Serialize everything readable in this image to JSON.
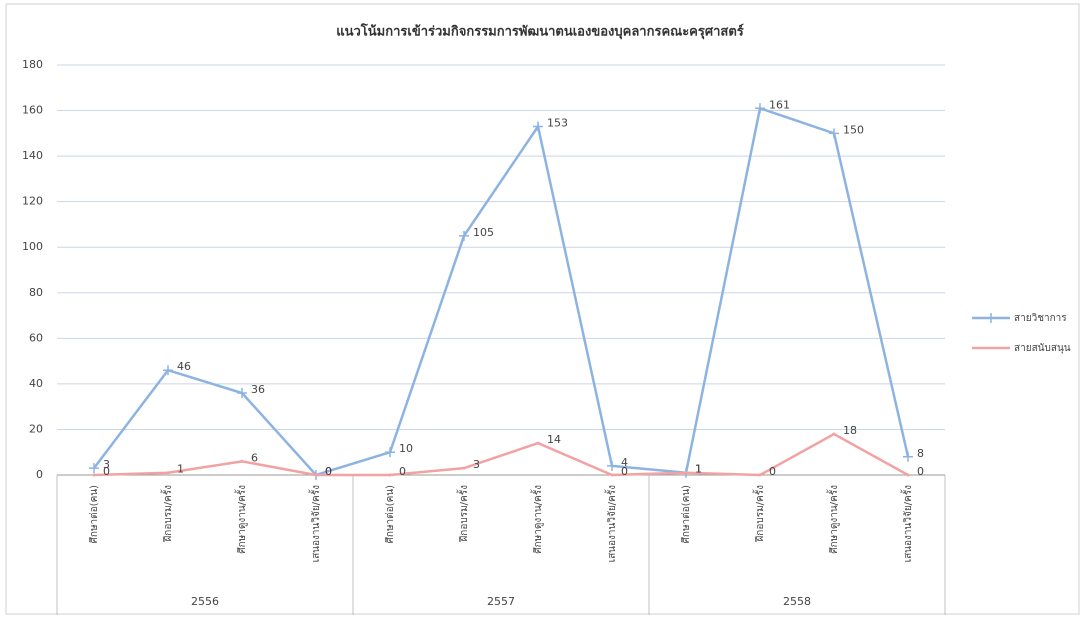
{
  "chart_data": {
    "type": "line",
    "title": "แนวโน้มการเข้าร่วมกิจกรรมการพัฒนาตนเองของบุคลากรคณะครุศาสตร์",
    "categories": [
      "ศึกษาต่อ(คน)",
      "ฝึกอบรม/ครั้ง",
      "ศึกษาดูงาน/ครั้ง",
      "เสนองานวิจัย/ครั้ง",
      "ศึกษาต่อ(คน)",
      "ฝึกอบรม/ครั้ง",
      "ศึกษาดูงาน/ครั้ง",
      "เสนองานวิจัย/ครั้ง",
      "ศึกษาต่อ(คน)",
      "ฝึกอบรม/ครั้ง",
      "ศึกษาดูงาน/ครั้ง",
      "เสนองานวิจัย/ครั้ง"
    ],
    "x_groups": [
      "2556",
      "2557",
      "2558"
    ],
    "series": [
      {
        "name": "สายวิชาการ",
        "color": "#8db3e2",
        "values": [
          3,
          46,
          36,
          0,
          10,
          105,
          153,
          4,
          1,
          161,
          150,
          8
        ]
      },
      {
        "name": "สายสนับสนุน",
        "color": "#f2a2a2",
        "values": [
          0,
          1,
          6,
          0,
          0,
          3,
          14,
          0,
          1,
          0,
          18,
          0
        ]
      }
    ],
    "ylim": [
      0,
      180
    ],
    "yticks": [
      0,
      20,
      40,
      60,
      80,
      100,
      120,
      140,
      160,
      180
    ],
    "grid": true,
    "legend": "right"
  }
}
